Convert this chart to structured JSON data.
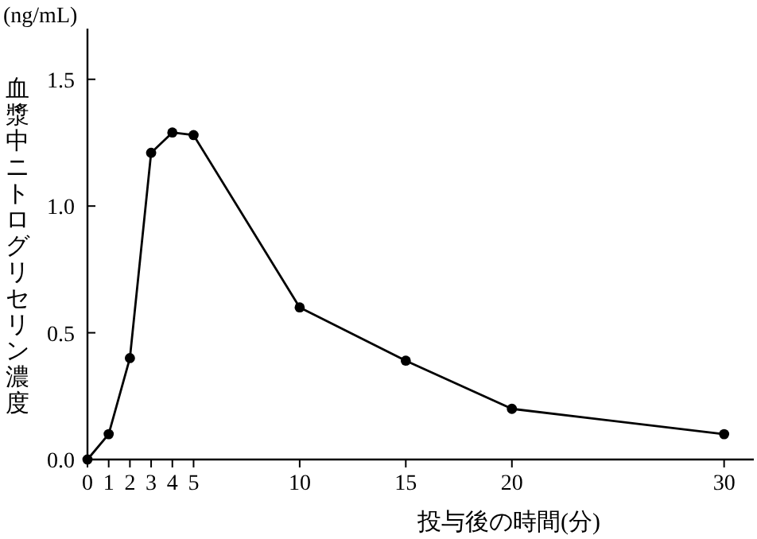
{
  "chart_data": {
    "type": "line",
    "xlabel": "投与後の時間(分)",
    "ylabel": "血漿中ニトログリセリン濃度",
    "annotations": [
      "(ng/mL)"
    ],
    "series": [
      {
        "color": "#000000",
        "marker": "circle",
        "x": [
          0,
          1,
          2,
          3,
          4,
          5,
          10,
          15,
          20,
          30
        ],
        "values": [
          0,
          0.1,
          0.4,
          1.21,
          1.29,
          1.28,
          0.6,
          0.39,
          0.2,
          0.1
        ]
      }
    ],
    "xlim": [
      0,
      31.4
    ],
    "xticks": [
      0,
      1,
      2,
      3,
      4,
      5,
      10,
      15,
      20,
      30
    ],
    "ylim": [
      0,
      1.7
    ],
    "yticks": [
      {
        "value": 0,
        "label": "0.0"
      },
      {
        "value": 0.5,
        "label": "0.5"
      },
      {
        "value": 1,
        "label": "1.0"
      },
      {
        "value": 1.5,
        "label": "1.5"
      }
    ],
    "grid": false,
    "line_style": "solid"
  }
}
